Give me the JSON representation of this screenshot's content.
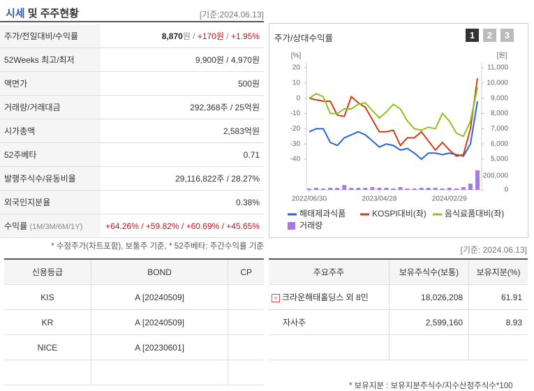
{
  "header": {
    "title_highlight": "시세",
    "title_rest": "및 주주현황",
    "date": "[기준:2024.06.13]"
  },
  "quote": {
    "rows": [
      {
        "label": "주가/전일대비/수익률",
        "value": [
          "8,870",
          "원 / ",
          "+170원",
          " / ",
          "+1.95%"
        ]
      },
      {
        "label": "52Weeks 최고/최저",
        "value": "9,900원 / 4,970원"
      },
      {
        "label": "액면가",
        "value": "500원"
      },
      {
        "label": "거래량/거래대금",
        "value": "292,368주 / 25억원"
      },
      {
        "label": "시가총액",
        "value": "2,583억원"
      },
      {
        "label": "52주베타",
        "value": "0.71"
      },
      {
        "label": "발행주식수/유동비율",
        "value": "29,116,822주 / 28.27%"
      },
      {
        "label": "외국인지분율",
        "value": "0.38%"
      },
      {
        "label": "수익률",
        "label_sub": "(1M/3M/6M/1Y)",
        "value": "+64.26% / +59.82% / +60.69% / +45.65%"
      }
    ],
    "note": "* 수정주가(차트포함), 보통주 기준, * 52주베타: 주간수익률 기준"
  },
  "chart_data": {
    "type": "line",
    "title": "주가/상대수익률",
    "buttons": [
      "1",
      "2",
      "3"
    ],
    "y_label": "[%]",
    "y2_label": "[원]",
    "categories": [
      "2022/06/30",
      null,
      null,
      null,
      null,
      null,
      null,
      null,
      null,
      null,
      "2023/04/28",
      null,
      null,
      null,
      null,
      null,
      null,
      null,
      null,
      null,
      "2024/02/29",
      null,
      null,
      null,
      null
    ],
    "ylim": [
      -40,
      20
    ],
    "yticks": [
      20,
      10,
      0,
      -10,
      -20,
      -30,
      -40
    ],
    "y2lim": [
      5000,
      11000
    ],
    "y2ticks": [
      {
        "value": 11000,
        "label": "11,000"
      },
      {
        "value": 10000,
        "label": "10,000"
      },
      {
        "value": 9000,
        "label": "9,000"
      },
      {
        "value": 8000,
        "label": "8,000"
      },
      {
        "value": 7000,
        "label": "7,000"
      },
      {
        "value": 6000,
        "label": "6,000"
      },
      {
        "value": 5000,
        "label": "5,000"
      }
    ],
    "series": [
      {
        "name": "해태제과식품",
        "color": "#2a62d8",
        "axis": "y2",
        "values": [
          6800,
          7000,
          7000,
          6100,
          5900,
          6400,
          6600,
          6800,
          6600,
          6200,
          5800,
          6000,
          5900,
          5600,
          5700,
          5400,
          5000,
          5400,
          5400,
          5300,
          5400,
          5300,
          5200,
          6000,
          8800
        ]
      },
      {
        "name": "KOSPI대비(좌)",
        "color": "#d03a14",
        "values": [
          0,
          -1,
          -2,
          -2,
          -11,
          -12,
          1,
          -3,
          -6,
          -14,
          -22,
          -22,
          -21,
          -31,
          -26,
          -26,
          -22,
          -28,
          -34,
          -29,
          -34,
          -38,
          -37,
          -20,
          13
        ]
      },
      {
        "name": "음식료품대비(좌)",
        "color": "#8cc21f",
        "values": [
          0,
          3,
          1,
          -10,
          -10,
          -7,
          -7,
          -4,
          -3,
          -8,
          -13,
          -9,
          -4,
          -7,
          -15,
          -20,
          -21,
          -19,
          -20,
          -10,
          -15,
          -23,
          -25,
          -15,
          7
        ]
      }
    ],
    "volume": {
      "name": "거래량",
      "color": "#a77be0",
      "ylim": [
        0,
        320000
      ],
      "yticks": [
        {
          "value": 200000,
          "label": "200,000"
        },
        0
      ],
      "values": [
        20000,
        30000,
        20000,
        30000,
        30000,
        70000,
        30000,
        30000,
        30000,
        40000,
        30000,
        30000,
        20000,
        40000,
        20000,
        20000,
        30000,
        30000,
        30000,
        20000,
        30000,
        20000,
        40000,
        90000,
        280000
      ]
    }
  },
  "base_date": "[기준: 2024.06.13]",
  "credit": {
    "headers": [
      "신용등급",
      "BOND",
      "CP"
    ],
    "rows": [
      [
        "KIS",
        "A  [20240509]",
        ""
      ],
      [
        "KR",
        "A  [20240509]",
        ""
      ],
      [
        "NICE",
        "A  [20230601]",
        ""
      ]
    ]
  },
  "holders": {
    "headers": [
      "주요주주",
      "보유주식수(보통)",
      "보유지분(%)"
    ],
    "rows": [
      [
        "크라운해태홀딩스 외 8인",
        "18,026,208",
        "61.91"
      ],
      [
        "자사주",
        "2,599,160",
        "8.93"
      ]
    ],
    "note": "* 보유지분 : 보유지분주식수/지수산정주식수*100"
  }
}
